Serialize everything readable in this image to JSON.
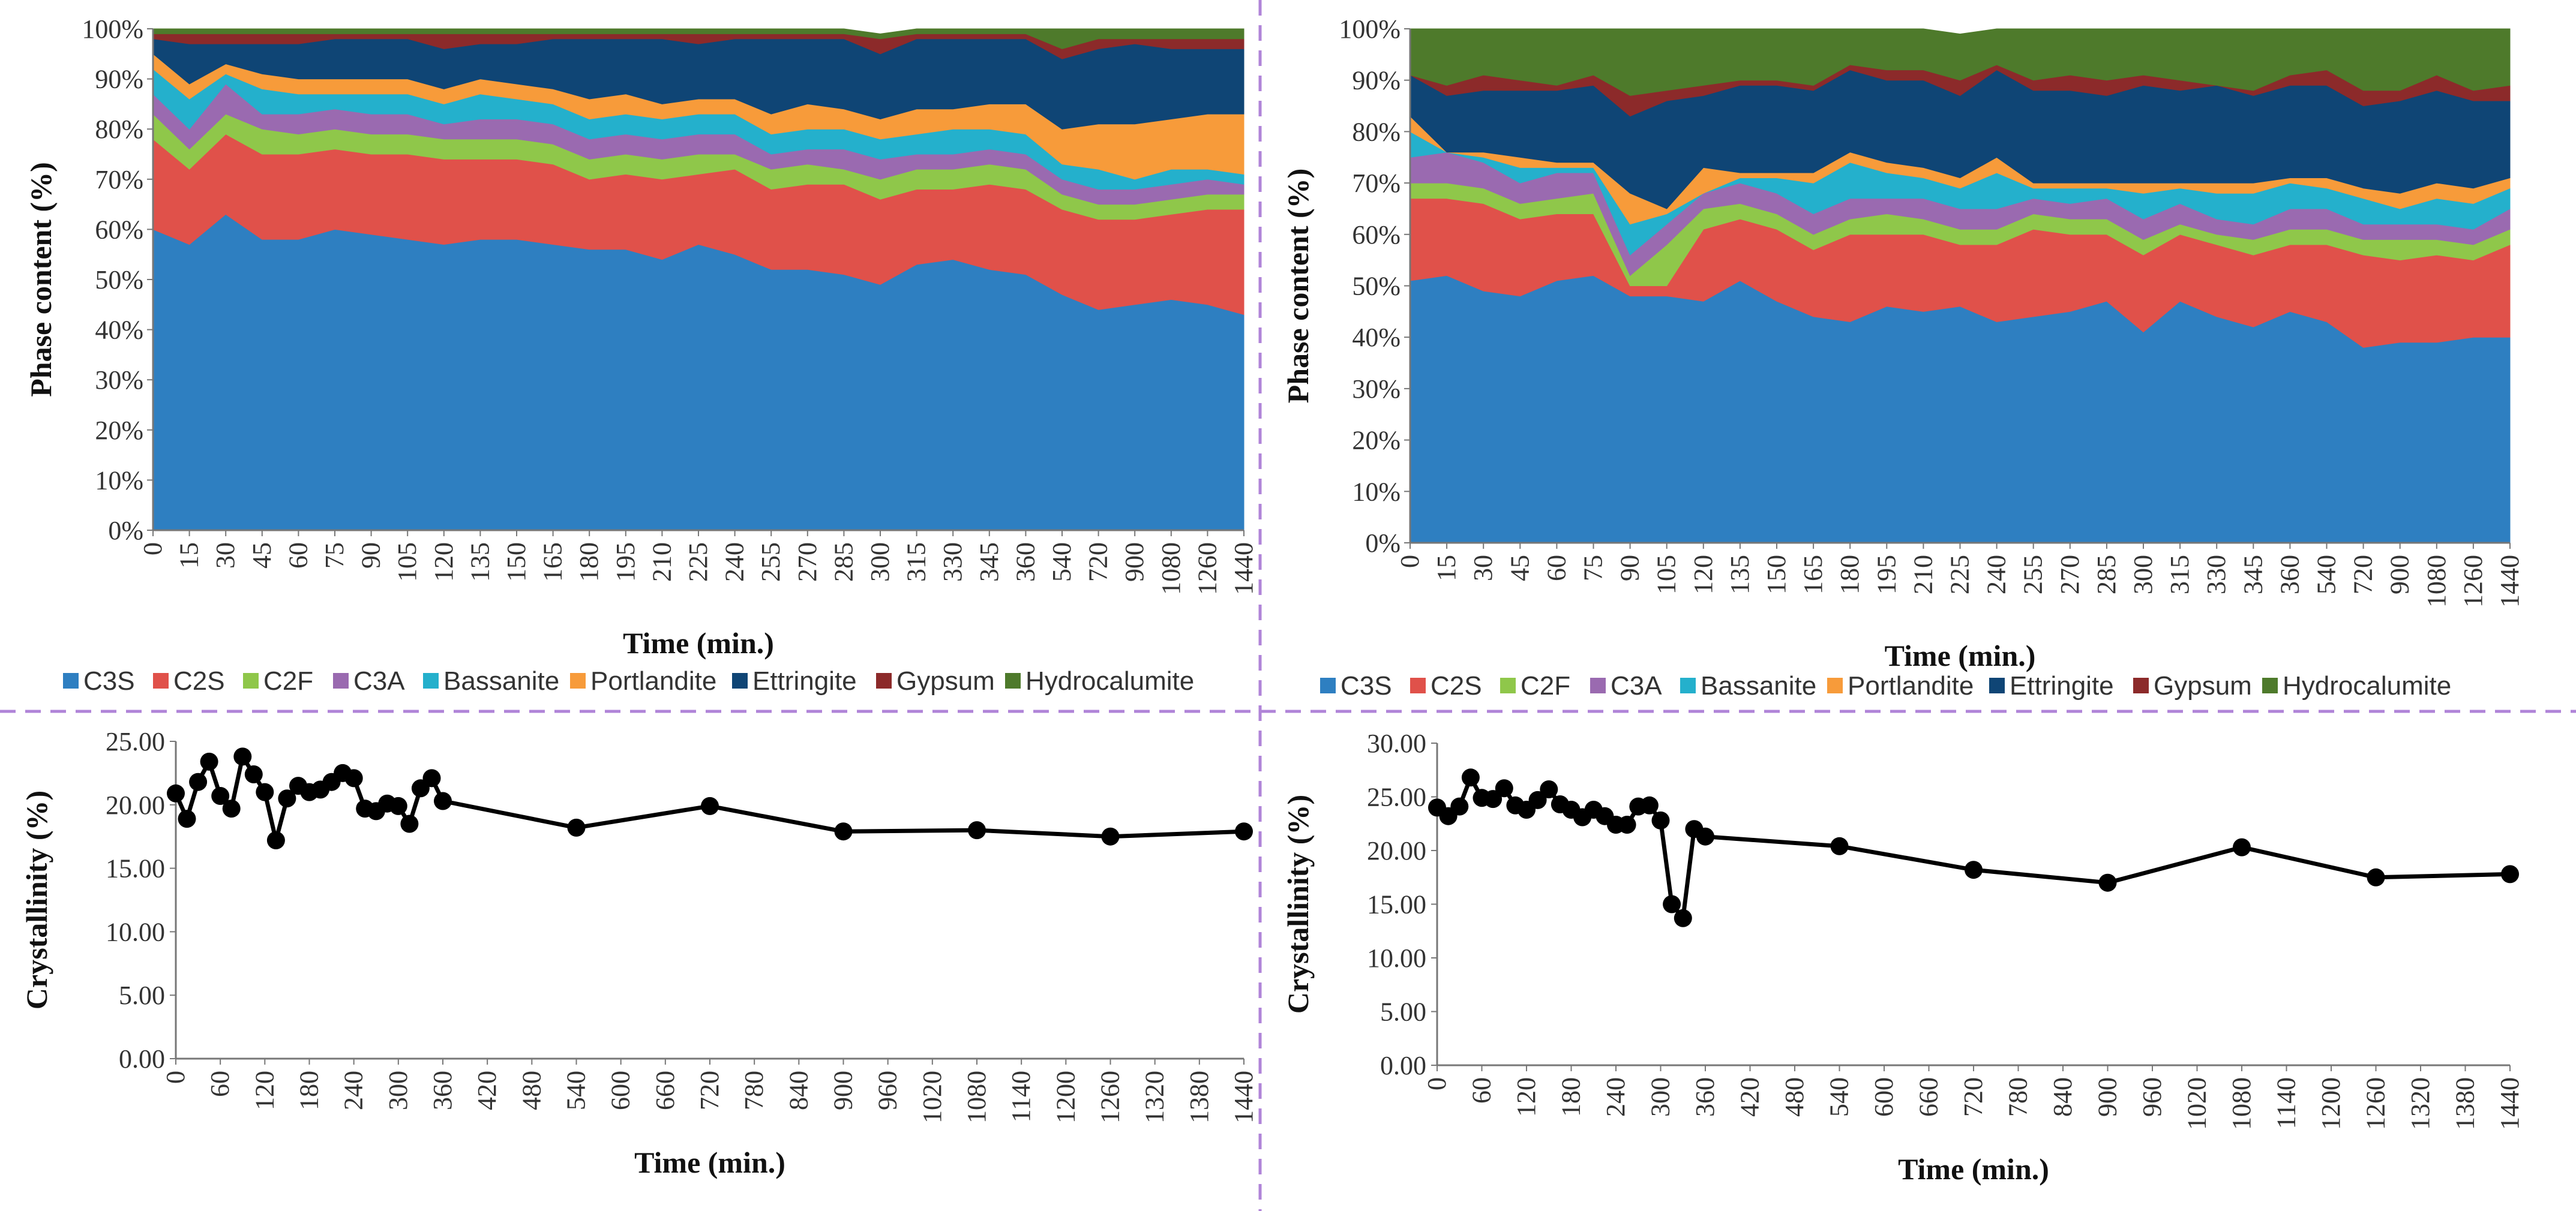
{
  "colors": {
    "C3S": "#2e7fc1",
    "C2S": "#e0514a",
    "C2F": "#8fc74a",
    "C3A": "#9a6ab0",
    "Bassanite": "#24b0cc",
    "Portlandite": "#f79b3a",
    "Ettringite": "#0f4575",
    "Gypsum": "#8c2a2a",
    "Hydrocalumite": "#4e7a2b",
    "line": "#000000",
    "divider": "#b084d8"
  },
  "legend_labels": [
    "C3S",
    "C2S",
    "C2F",
    "C3A",
    "Bassanite",
    "Portlandite",
    "Ettringite",
    "Gypsum",
    "Hydrocalumite"
  ],
  "chart_data": [
    {
      "type": "area",
      "stacked": true,
      "xlabel": "Time (min.)",
      "ylabel": "Phase content (%)",
      "ylim": [
        0,
        100
      ],
      "yticks": [
        "0%",
        "10%",
        "20%",
        "30%",
        "40%",
        "50%",
        "60%",
        "70%",
        "80%",
        "90%",
        "100%"
      ],
      "categories": [
        "0",
        "15",
        "30",
        "45",
        "60",
        "75",
        "90",
        "105",
        "120",
        "135",
        "150",
        "165",
        "180",
        "195",
        "210",
        "225",
        "240",
        "255",
        "270",
        "285",
        "300",
        "315",
        "330",
        "345",
        "360",
        "540",
        "720",
        "900",
        "1080",
        "1260",
        "1440"
      ],
      "legend_position": "bottom",
      "series": [
        {
          "name": "C3S",
          "values": [
            60,
            57,
            63,
            58,
            58,
            60,
            59,
            58,
            57,
            58,
            58,
            57,
            56,
            56,
            54,
            57,
            55,
            52,
            52,
            51,
            49,
            53,
            54,
            52,
            51,
            47,
            44,
            45,
            46,
            45,
            43
          ]
        },
        {
          "name": "C2S",
          "values": [
            18,
            15,
            16,
            17,
            17,
            16,
            16,
            17,
            17,
            16,
            16,
            16,
            14,
            15,
            16,
            14,
            17,
            16,
            17,
            18,
            17,
            15,
            14,
            17,
            17,
            17,
            18,
            17,
            17,
            19,
            21
          ]
        },
        {
          "name": "C2F",
          "values": [
            5,
            4,
            4,
            5,
            4,
            4,
            4,
            4,
            4,
            4,
            4,
            4,
            4,
            4,
            4,
            4,
            3,
            4,
            4,
            3,
            4,
            4,
            4,
            4,
            4,
            3,
            3,
            3,
            3,
            3,
            3
          ]
        },
        {
          "name": "C3A",
          "values": [
            4,
            4,
            6,
            3,
            4,
            4,
            4,
            4,
            3,
            4,
            4,
            4,
            4,
            4,
            4,
            4,
            4,
            3,
            3,
            4,
            4,
            3,
            3,
            3,
            3,
            3,
            3,
            3,
            3,
            3,
            2
          ]
        },
        {
          "name": "Bassanite",
          "values": [
            5,
            6,
            2,
            5,
            4,
            3,
            4,
            4,
            4,
            5,
            4,
            4,
            4,
            4,
            4,
            4,
            4,
            4,
            4,
            4,
            4,
            4,
            5,
            4,
            4,
            3,
            4,
            2,
            3,
            2,
            2
          ]
        },
        {
          "name": "Portlandite",
          "values": [
            3,
            3,
            2,
            3,
            3,
            3,
            3,
            3,
            3,
            3,
            3,
            3,
            4,
            4,
            3,
            3,
            3,
            4,
            5,
            4,
            4,
            5,
            4,
            5,
            6,
            7,
            9,
            11,
            10,
            11,
            12
          ]
        },
        {
          "name": "Ettringite",
          "values": [
            3,
            8,
            4,
            6,
            7,
            8,
            8,
            8,
            8,
            7,
            8,
            10,
            12,
            11,
            13,
            11,
            12,
            15,
            13,
            14,
            13,
            14,
            14,
            13,
            13,
            14,
            15,
            16,
            14,
            13,
            13
          ]
        },
        {
          "name": "Gypsum",
          "values": [
            1,
            2,
            2,
            2,
            2,
            1,
            1,
            1,
            3,
            2,
            2,
            1,
            1,
            1,
            1,
            2,
            1,
            1,
            1,
            1,
            3,
            1,
            1,
            1,
            1,
            2,
            2,
            1,
            2,
            2,
            2
          ]
        },
        {
          "name": "Hydrocalumite",
          "values": [
            1,
            1,
            1,
            1,
            1,
            1,
            1,
            1,
            1,
            1,
            1,
            1,
            1,
            1,
            1,
            1,
            1,
            1,
            1,
            1,
            1,
            1,
            1,
            1,
            1,
            4,
            2,
            2,
            2,
            2,
            2
          ]
        }
      ]
    },
    {
      "type": "area",
      "stacked": true,
      "xlabel": "Time (min.)",
      "ylabel": "Phase content (%)",
      "ylim": [
        0,
        100
      ],
      "yticks": [
        "0%",
        "10%",
        "20%",
        "30%",
        "40%",
        "50%",
        "60%",
        "70%",
        "80%",
        "90%",
        "100%"
      ],
      "categories": [
        "0",
        "15",
        "30",
        "45",
        "60",
        "75",
        "90",
        "105",
        "120",
        "135",
        "150",
        "165",
        "180",
        "195",
        "210",
        "225",
        "240",
        "255",
        "270",
        "285",
        "300",
        "315",
        "330",
        "345",
        "360",
        "540",
        "720",
        "900",
        "1080",
        "1260",
        "1440"
      ],
      "legend_position": "bottom",
      "series": [
        {
          "name": "C3S",
          "values": [
            51,
            52,
            49,
            48,
            51,
            52,
            48,
            48,
            47,
            51,
            47,
            44,
            43,
            46,
            45,
            46,
            43,
            44,
            45,
            47,
            41,
            47,
            44,
            42,
            45,
            43,
            38,
            39,
            39,
            40,
            40
          ]
        },
        {
          "name": "C2S",
          "values": [
            16,
            15,
            17,
            15,
            13,
            12,
            2,
            2,
            14,
            12,
            14,
            13,
            17,
            14,
            15,
            12,
            15,
            17,
            15,
            13,
            15,
            13,
            14,
            14,
            13,
            15,
            18,
            16,
            17,
            15,
            18
          ]
        },
        {
          "name": "C2F",
          "values": [
            3,
            3,
            3,
            3,
            3,
            4,
            2,
            8,
            4,
            3,
            3,
            3,
            3,
            4,
            3,
            3,
            3,
            3,
            3,
            3,
            3,
            2,
            2,
            3,
            3,
            3,
            3,
            4,
            3,
            3,
            3
          ]
        },
        {
          "name": "C3A",
          "values": [
            5,
            6,
            5,
            4,
            5,
            4,
            4,
            4,
            3,
            4,
            4,
            4,
            4,
            3,
            4,
            4,
            4,
            3,
            3,
            4,
            4,
            4,
            3,
            3,
            4,
            4,
            3,
            3,
            3,
            3,
            4
          ]
        },
        {
          "name": "Bassanite",
          "values": [
            5,
            0,
            1,
            3,
            1,
            1,
            6,
            2,
            0,
            1,
            3,
            6,
            7,
            5,
            4,
            4,
            7,
            2,
            3,
            2,
            5,
            3,
            5,
            6,
            5,
            4,
            5,
            3,
            5,
            5,
            4
          ]
        },
        {
          "name": "Portlandite",
          "values": [
            3,
            0,
            1,
            2,
            1,
            1,
            6,
            1,
            5,
            1,
            1,
            2,
            2,
            2,
            2,
            2,
            3,
            1,
            1,
            1,
            2,
            1,
            2,
            2,
            1,
            2,
            2,
            3,
            3,
            3,
            2
          ]
        },
        {
          "name": "Ettringite",
          "values": [
            8,
            11,
            12,
            13,
            14,
            15,
            15,
            21,
            14,
            17,
            17,
            16,
            16,
            16,
            17,
            16,
            17,
            18,
            18,
            17,
            19,
            18,
            19,
            17,
            18,
            18,
            16,
            18,
            18,
            17,
            15
          ]
        },
        {
          "name": "Gypsum",
          "values": [
            0,
            2,
            3,
            2,
            1,
            2,
            4,
            2,
            2,
            1,
            1,
            1,
            1,
            2,
            2,
            3,
            1,
            2,
            3,
            3,
            2,
            2,
            0,
            1,
            2,
            3,
            3,
            2,
            3,
            2,
            3
          ]
        },
        {
          "name": "Hydrocalumite",
          "values": [
            9,
            11,
            9,
            10,
            11,
            9,
            13,
            12,
            11,
            10,
            10,
            11,
            7,
            8,
            8,
            9,
            7,
            10,
            9,
            10,
            9,
            10,
            11,
            12,
            9,
            8,
            12,
            12,
            9,
            12,
            11
          ]
        }
      ]
    },
    {
      "type": "line",
      "xlabel": "Time (min.)",
      "ylabel": "Crystallinity  (%)",
      "ylim": [
        0,
        25
      ],
      "yticks": [
        "0.00",
        "5.00",
        "10.00",
        "15.00",
        "20.00",
        "25.00"
      ],
      "xlim": [
        0,
        1440
      ],
      "xticks": [
        "0",
        "60",
        "120",
        "180",
        "240",
        "300",
        "360",
        "420",
        "480",
        "540",
        "600",
        "660",
        "720",
        "780",
        "840",
        "900",
        "960",
        "1020",
        "1080",
        "1140",
        "1200",
        "1260",
        "1320",
        "1380",
        "1440"
      ],
      "x": [
        0,
        15,
        30,
        45,
        60,
        75,
        90,
        105,
        120,
        135,
        150,
        165,
        180,
        195,
        210,
        225,
        240,
        255,
        270,
        285,
        300,
        315,
        330,
        345,
        360,
        540,
        720,
        900,
        1080,
        1260,
        1440
      ],
      "y": [
        20.9,
        18.9,
        21.8,
        23.4,
        20.7,
        19.7,
        23.8,
        22.4,
        21.0,
        17.2,
        20.5,
        21.5,
        21.0,
        21.2,
        21.8,
        22.5,
        22.1,
        19.7,
        19.5,
        20.1,
        19.9,
        18.5,
        21.3,
        22.1,
        20.3,
        18.2,
        19.9,
        17.9,
        18.0,
        17.5,
        17.9
      ]
    },
    {
      "type": "line",
      "xlabel": "Time (min.)",
      "ylabel": "Crystallinity  (%)",
      "ylim": [
        0,
        30
      ],
      "yticks": [
        "0.00",
        "5.00",
        "10.00",
        "15.00",
        "20.00",
        "25.00",
        "30.00"
      ],
      "xlim": [
        0,
        1440
      ],
      "xticks": [
        "0",
        "60",
        "120",
        "180",
        "240",
        "300",
        "360",
        "420",
        "480",
        "540",
        "600",
        "660",
        "720",
        "780",
        "840",
        "900",
        "960",
        "1020",
        "1080",
        "1140",
        "1200",
        "1260",
        "1320",
        "1380",
        "1440"
      ],
      "x": [
        0,
        15,
        30,
        45,
        60,
        75,
        90,
        105,
        120,
        135,
        150,
        165,
        180,
        195,
        210,
        225,
        240,
        255,
        270,
        285,
        300,
        315,
        330,
        345,
        360,
        540,
        720,
        900,
        1080,
        1260,
        1440
      ],
      "y": [
        24.0,
        23.2,
        24.1,
        26.8,
        24.9,
        24.8,
        25.8,
        24.2,
        23.8,
        24.7,
        25.7,
        24.3,
        23.8,
        23.1,
        23.8,
        23.2,
        22.4,
        22.4,
        24.1,
        24.2,
        22.8,
        15.0,
        13.7,
        22.0,
        21.3,
        20.4,
        18.2,
        17.0,
        20.3,
        17.5,
        17.8
      ]
    }
  ]
}
